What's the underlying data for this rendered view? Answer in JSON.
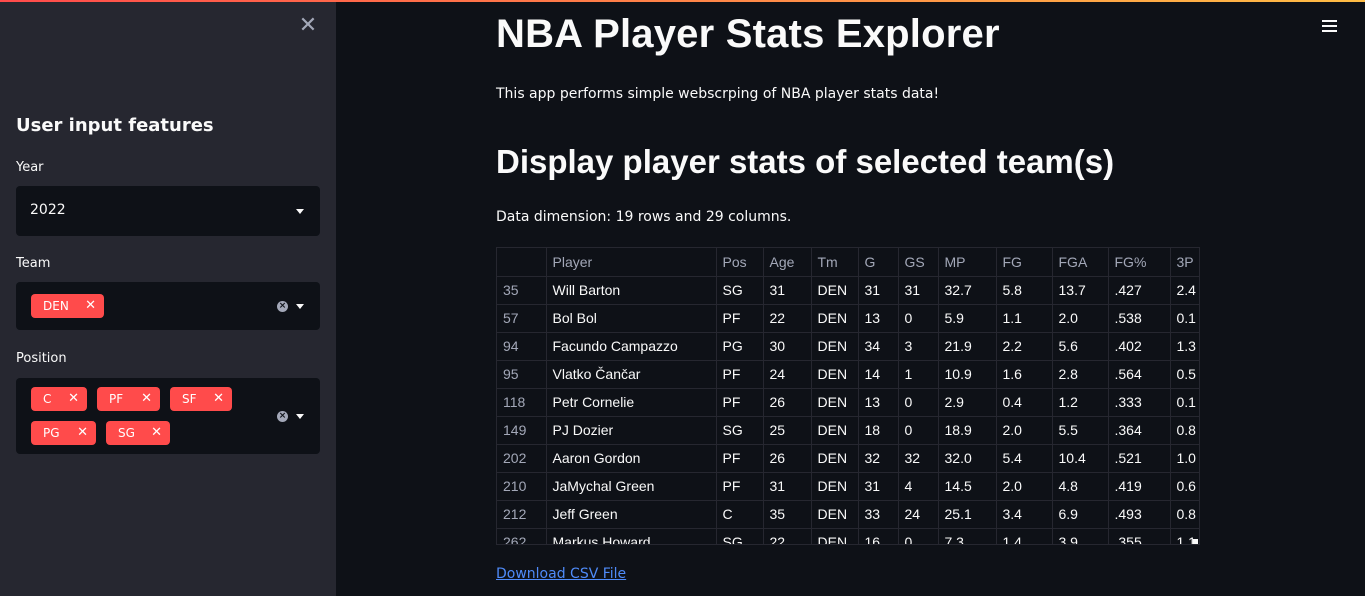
{
  "sidebar": {
    "close_icon": "close-icon",
    "title": "User input features",
    "year": {
      "label": "Year",
      "value": "2022"
    },
    "team": {
      "label": "Team",
      "tags": [
        "DEN"
      ]
    },
    "position": {
      "label": "Position",
      "tags": [
        "C",
        "PF",
        "SF",
        "PG",
        "SG"
      ]
    }
  },
  "main": {
    "title": "NBA Player Stats Explorer",
    "description": "This app performs simple webscrping of NBA player stats data!",
    "subtitle": "Display player stats of selected team(s)",
    "dimension": "Data dimension: 19 rows and 29 columns.",
    "download": "Download CSV File"
  },
  "table": {
    "columns": [
      "",
      "Player",
      "Pos",
      "Age",
      "Tm",
      "G",
      "GS",
      "MP",
      "FG",
      "FGA",
      "FG%",
      "3P"
    ],
    "rows": [
      [
        "35",
        "Will Barton",
        "SG",
        "31",
        "DEN",
        "31",
        "31",
        "32.7",
        "5.8",
        "13.7",
        ".427",
        "2.4"
      ],
      [
        "57",
        "Bol Bol",
        "PF",
        "22",
        "DEN",
        "13",
        "0",
        "5.9",
        "1.1",
        "2.0",
        ".538",
        "0.1"
      ],
      [
        "94",
        "Facundo Campazzo",
        "PG",
        "30",
        "DEN",
        "34",
        "3",
        "21.9",
        "2.2",
        "5.6",
        ".402",
        "1.3"
      ],
      [
        "95",
        "Vlatko Čančar",
        "PF",
        "24",
        "DEN",
        "14",
        "1",
        "10.9",
        "1.6",
        "2.8",
        ".564",
        "0.5"
      ],
      [
        "118",
        "Petr Cornelie",
        "PF",
        "26",
        "DEN",
        "13",
        "0",
        "2.9",
        "0.4",
        "1.2",
        ".333",
        "0.1"
      ],
      [
        "149",
        "PJ Dozier",
        "SG",
        "25",
        "DEN",
        "18",
        "0",
        "18.9",
        "2.0",
        "5.5",
        ".364",
        "0.8"
      ],
      [
        "202",
        "Aaron Gordon",
        "PF",
        "26",
        "DEN",
        "32",
        "32",
        "32.0",
        "5.4",
        "10.4",
        ".521",
        "1.0"
      ],
      [
        "210",
        "JaMychal Green",
        "PF",
        "31",
        "DEN",
        "31",
        "4",
        "14.5",
        "2.0",
        "4.8",
        ".419",
        "0.6"
      ],
      [
        "212",
        "Jeff Green",
        "C",
        "35",
        "DEN",
        "33",
        "24",
        "25.1",
        "3.4",
        "6.9",
        ".493",
        "0.8"
      ],
      [
        "262",
        "Markus Howard",
        "SG",
        "22",
        "DEN",
        "16",
        "0",
        "7.3",
        "1.4",
        "3.9",
        ".355",
        "1.1"
      ]
    ]
  }
}
